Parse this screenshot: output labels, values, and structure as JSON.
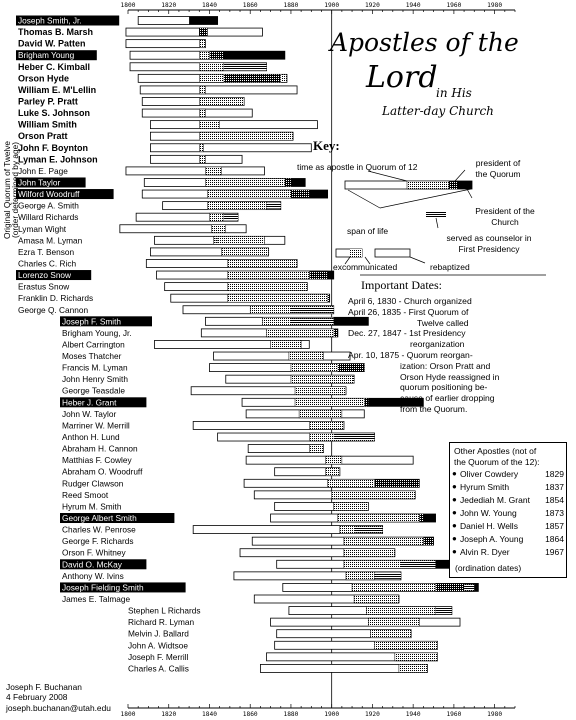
{
  "title": {
    "line1": "Apostles of the",
    "line2": "Lord",
    "line3": "in His",
    "line4": "Latter-day Church"
  },
  "axis_label": {
    "line1": "Original Quorum of Twelve",
    "line2": "(order determined by age)"
  },
  "key": {
    "heading": "Key:",
    "apostle": "time as apostle in Quorum of 12",
    "president_quorum": "president of the Quorum",
    "president_church": "President of the Church",
    "span": "span of life",
    "counselor": "served as counselor in First Presidency",
    "excommunicated": "excommunicated",
    "rebaptized": "rebaptized"
  },
  "important_dates": {
    "heading": "Important Dates:",
    "lines": [
      "April 6, 1830 - Church organized",
      "April 26, 1835 - First Quorum of",
      "Twelve called",
      "Dec. 27, 1847 - 1st Presidency",
      "reorganization",
      "Apr. 10, 1875 - Quorum reorgan-",
      "ization: Orson Pratt and",
      "Orson Hyde reassigned in",
      "quorum positioning be-",
      "cause of earlier dropping",
      "from the Quorum."
    ]
  },
  "other_apostles": {
    "heading1": "Other Apostles (not of",
    "heading2": "the Quorum of the 12):",
    "entries": [
      {
        "name": "Oliver Cowdery",
        "year": "1829"
      },
      {
        "name": "Hyrum Smith",
        "year": "1837"
      },
      {
        "name": "Jedediah M. Grant",
        "year": "1854"
      },
      {
        "name": "John W. Young",
        "year": "1873"
      },
      {
        "name": "Daniel H. Wells",
        "year": "1857"
      },
      {
        "name": "Joseph A. Young",
        "year": "1864"
      },
      {
        "name": "Alvin R. Dyer",
        "year": "1967"
      }
    ],
    "footer": "(ordination dates)"
  },
  "credit": {
    "name": "Joseph F. Buchanan",
    "date": "4 February 2008",
    "email": "joseph.buchanan@utah.edu"
  },
  "chart_data": {
    "type": "timeline",
    "xlim": [
      1800,
      1990
    ],
    "ticks": [
      1800,
      1820,
      1840,
      1860,
      1880,
      1900,
      1920,
      1940,
      1960,
      1980
    ],
    "reference_line": 1900,
    "rows": [
      {
        "name": "Joseph Smith, Jr.",
        "presidentChurch": true,
        "bold": true,
        "birth": 1805,
        "death": 1844,
        "ap": null,
        "pq": null,
        "cp": null,
        "pc": [
          1830,
          1844
        ]
      },
      {
        "name": "Thomas B. Marsh",
        "bold": true,
        "birth": 1799,
        "death": 1866,
        "ap": [
          1835,
          1839
        ],
        "pq": [
          1835,
          1839
        ]
      },
      {
        "name": "David W. Patten",
        "bold": true,
        "birth": 1799,
        "death": 1838,
        "ap": [
          1835,
          1838
        ]
      },
      {
        "name": "Brigham Young",
        "presidentChurch": true,
        "bold": true,
        "birth": 1801,
        "death": 1877,
        "ap": [
          1835,
          1847
        ],
        "pq": [
          1840,
          1847
        ],
        "pc": [
          1847,
          1877
        ]
      },
      {
        "name": "Heber C. Kimball",
        "bold": true,
        "birth": 1801,
        "death": 1868,
        "ap": [
          1835,
          1847
        ],
        "cp": [
          1847,
          1868
        ]
      },
      {
        "name": "Orson Hyde",
        "bold": true,
        "birth": 1805,
        "death": 1878,
        "ap": [
          1835,
          1878
        ],
        "pq": [
          1847,
          1875
        ]
      },
      {
        "name": "William E. M'Lellin",
        "bold": true,
        "birth": 1806,
        "death": 1883,
        "ap": [
          1835,
          1838
        ]
      },
      {
        "name": "Parley P. Pratt",
        "bold": true,
        "birth": 1807,
        "death": 1857,
        "ap": [
          1835,
          1857
        ]
      },
      {
        "name": "Luke S. Johnson",
        "bold": true,
        "birth": 1807,
        "death": 1861,
        "ap": [
          1835,
          1838
        ]
      },
      {
        "name": "William Smith",
        "bold": true,
        "birth": 1811,
        "death": 1893,
        "ap": [
          1835,
          1845
        ]
      },
      {
        "name": "Orson Pratt",
        "bold": true,
        "birth": 1811,
        "death": 1881,
        "ap": [
          1835,
          1881
        ]
      },
      {
        "name": "John F. Boynton",
        "bold": true,
        "birth": 1811,
        "death": 1890,
        "ap": [
          1835,
          1837
        ]
      },
      {
        "name": "Lyman E. Johnson",
        "bold": true,
        "birth": 1811,
        "death": 1856,
        "ap": [
          1835,
          1838
        ]
      },
      {
        "name": "John E. Page",
        "birth": 1799,
        "death": 1867,
        "ap": [
          1838,
          1846
        ]
      },
      {
        "name": "John Taylor",
        "presidentChurch": true,
        "birth": 1808,
        "death": 1887,
        "ap": [
          1838,
          1880
        ],
        "pq": [
          1877,
          1880
        ],
        "pc": [
          1880,
          1887
        ]
      },
      {
        "name": "Wilford Woodruff",
        "presidentChurch": true,
        "birth": 1807,
        "death": 1898,
        "ap": [
          1839,
          1889
        ],
        "pq": [
          1880,
          1889
        ],
        "pc": [
          1889,
          1898
        ]
      },
      {
        "name": "George A. Smith",
        "birth": 1817,
        "death": 1875,
        "ap": [
          1839,
          1868
        ],
        "cp": [
          1868,
          1875
        ]
      },
      {
        "name": "Willard Richards",
        "birth": 1804,
        "death": 1854,
        "ap": [
          1840,
          1847
        ],
        "cp": [
          1847,
          1854
        ]
      },
      {
        "name": "Lyman Wight",
        "birth": 1796,
        "death": 1858,
        "ap": [
          1841,
          1848
        ]
      },
      {
        "name": "Amasa M. Lyman",
        "birth": 1813,
        "death": 1877,
        "ap": [
          1842,
          1867
        ],
        "cp": [
          1843,
          1844
        ]
      },
      {
        "name": "Ezra T. Benson",
        "birth": 1811,
        "death": 1869,
        "ap": [
          1846,
          1869
        ]
      },
      {
        "name": "Charles C. Rich",
        "birth": 1809,
        "death": 1883,
        "ap": [
          1849,
          1883
        ]
      },
      {
        "name": "Lorenzo Snow",
        "presidentChurch": true,
        "birth": 1814,
        "death": 1901,
        "ap": [
          1849,
          1898
        ],
        "pq": [
          1889,
          1898
        ],
        "pc": [
          1898,
          1901
        ]
      },
      {
        "name": "Erastus Snow",
        "birth": 1818,
        "death": 1888,
        "ap": [
          1849,
          1888
        ]
      },
      {
        "name": "Franklin D. Richards",
        "birth": 1821,
        "death": 1899,
        "ap": [
          1849,
          1899
        ],
        "pq": [
          1898,
          1899
        ]
      },
      {
        "name": "George Q. Cannon",
        "birth": 1827,
        "death": 1901,
        "ap": [
          1860,
          1901
        ],
        "cp": [
          1880,
          1901
        ]
      },
      {
        "name": "Joseph F. Smith",
        "presidentChurch": true,
        "birth": 1838,
        "death": 1918,
        "ap": [
          1866,
          1901
        ],
        "cp": [
          1880,
          1901
        ],
        "pc": [
          1901,
          1918
        ]
      },
      {
        "name": "Brigham Young, Jr.",
        "birth": 1836,
        "death": 1903,
        "ap": [
          1868,
          1903
        ],
        "pq": [
          1901,
          1903
        ]
      },
      {
        "name": "Albert Carrington",
        "birth": 1813,
        "death": 1889,
        "ap": [
          1870,
          1885
        ]
      },
      {
        "name": "Moses Thatcher",
        "birth": 1842,
        "death": 1909,
        "ap": [
          1879,
          1896
        ]
      },
      {
        "name": "Francis M. Lyman",
        "birth": 1840,
        "death": 1916,
        "ap": [
          1880,
          1916
        ],
        "pq": [
          1903,
          1916
        ]
      },
      {
        "name": "John Henry Smith",
        "birth": 1848,
        "death": 1911,
        "ap": [
          1880,
          1911
        ],
        "cp": [
          1910,
          1911
        ]
      },
      {
        "name": "George Teasdale",
        "birth": 1831,
        "death": 1907,
        "ap": [
          1882,
          1907
        ]
      },
      {
        "name": "Heber J. Grant",
        "presidentChurch": true,
        "birth": 1856,
        "death": 1945,
        "ap": [
          1882,
          1918
        ],
        "pq": [
          1916,
          1918
        ],
        "pc": [
          1918,
          1945
        ]
      },
      {
        "name": "John W. Taylor",
        "birth": 1858,
        "death": 1916,
        "ap": [
          1884,
          1905
        ]
      },
      {
        "name": "Marriner W. Merrill",
        "birth": 1832,
        "death": 1906,
        "ap": [
          1889,
          1906
        ]
      },
      {
        "name": "Anthon H. Lund",
        "birth": 1844,
        "death": 1921,
        "ap": [
          1889,
          1921
        ],
        "cp": [
          1901,
          1921
        ]
      },
      {
        "name": "Abraham H. Cannon",
        "birth": 1859,
        "death": 1896,
        "ap": [
          1889,
          1896
        ]
      },
      {
        "name": "Matthias F. Cowley",
        "birth": 1858,
        "death": 1940,
        "ap": [
          1897,
          1905
        ]
      },
      {
        "name": "Abraham O. Woodruff",
        "birth": 1872,
        "death": 1904,
        "ap": [
          1897,
          1904
        ]
      },
      {
        "name": "Rudger Clawson",
        "birth": 1857,
        "death": 1943,
        "ap": [
          1898,
          1943
        ],
        "pq": [
          1921,
          1943
        ]
      },
      {
        "name": "Reed Smoot",
        "birth": 1862,
        "death": 1941,
        "ap": [
          1900,
          1941
        ]
      },
      {
        "name": "Hyrum M. Smith",
        "birth": 1872,
        "death": 1918,
        "ap": [
          1901,
          1918
        ]
      },
      {
        "name": "George Albert Smith",
        "presidentChurch": true,
        "birth": 1870,
        "death": 1951,
        "ap": [
          1903,
          1945
        ],
        "pq": [
          1943,
          1945
        ],
        "pc": [
          1945,
          1951
        ]
      },
      {
        "name": "Charles W. Penrose",
        "birth": 1832,
        "death": 1925,
        "ap": [
          1904,
          1925
        ],
        "cp": [
          1911,
          1925
        ]
      },
      {
        "name": "George F. Richards",
        "birth": 1861,
        "death": 1950,
        "ap": [
          1906,
          1950
        ],
        "pq": [
          1945,
          1950
        ]
      },
      {
        "name": "Orson F. Whitney",
        "birth": 1855,
        "death": 1931,
        "ap": [
          1906,
          1931
        ]
      },
      {
        "name": "David O. McKay",
        "presidentChurch": true,
        "birth": 1873,
        "death": 1970,
        "ap": [
          1906,
          1951
        ],
        "cp": [
          1934,
          1951
        ],
        "pc": [
          1951,
          1970
        ]
      },
      {
        "name": "Anthony W. Ivins",
        "birth": 1852,
        "death": 1934,
        "ap": [
          1907,
          1921
        ],
        "cp": [
          1921,
          1934
        ]
      },
      {
        "name": "Joseph Fielding Smith",
        "presidentChurch": true,
        "birth": 1876,
        "death": 1972,
        "ap": [
          1910,
          1970
        ],
        "pq": [
          1951,
          1970
        ],
        "cp": [
          1965,
          1970
        ],
        "pc": [
          1970,
          1972
        ]
      },
      {
        "name": "James E. Talmage",
        "birth": 1862,
        "death": 1933,
        "ap": [
          1911,
          1933
        ]
      },
      {
        "name": "Stephen L Richards",
        "birth": 1879,
        "death": 1959,
        "ap": [
          1917,
          1951
        ],
        "cp": [
          1951,
          1959
        ]
      },
      {
        "name": "Richard R. Lyman",
        "birth": 1870,
        "death": 1963,
        "ap": [
          1918,
          1943
        ]
      },
      {
        "name": "Melvin J. Ballard",
        "birth": 1873,
        "death": 1939,
        "ap": [
          1919,
          1939
        ]
      },
      {
        "name": "John A. Widtsoe",
        "birth": 1872,
        "death": 1952,
        "ap": [
          1921,
          1952
        ]
      },
      {
        "name": "Joseph F. Merrill",
        "birth": 1868,
        "death": 1952,
        "ap": [
          1931,
          1952
        ]
      },
      {
        "name": "Charles A. Callis",
        "birth": 1865,
        "death": 1947,
        "ap": [
          1933,
          1947
        ]
      }
    ]
  }
}
